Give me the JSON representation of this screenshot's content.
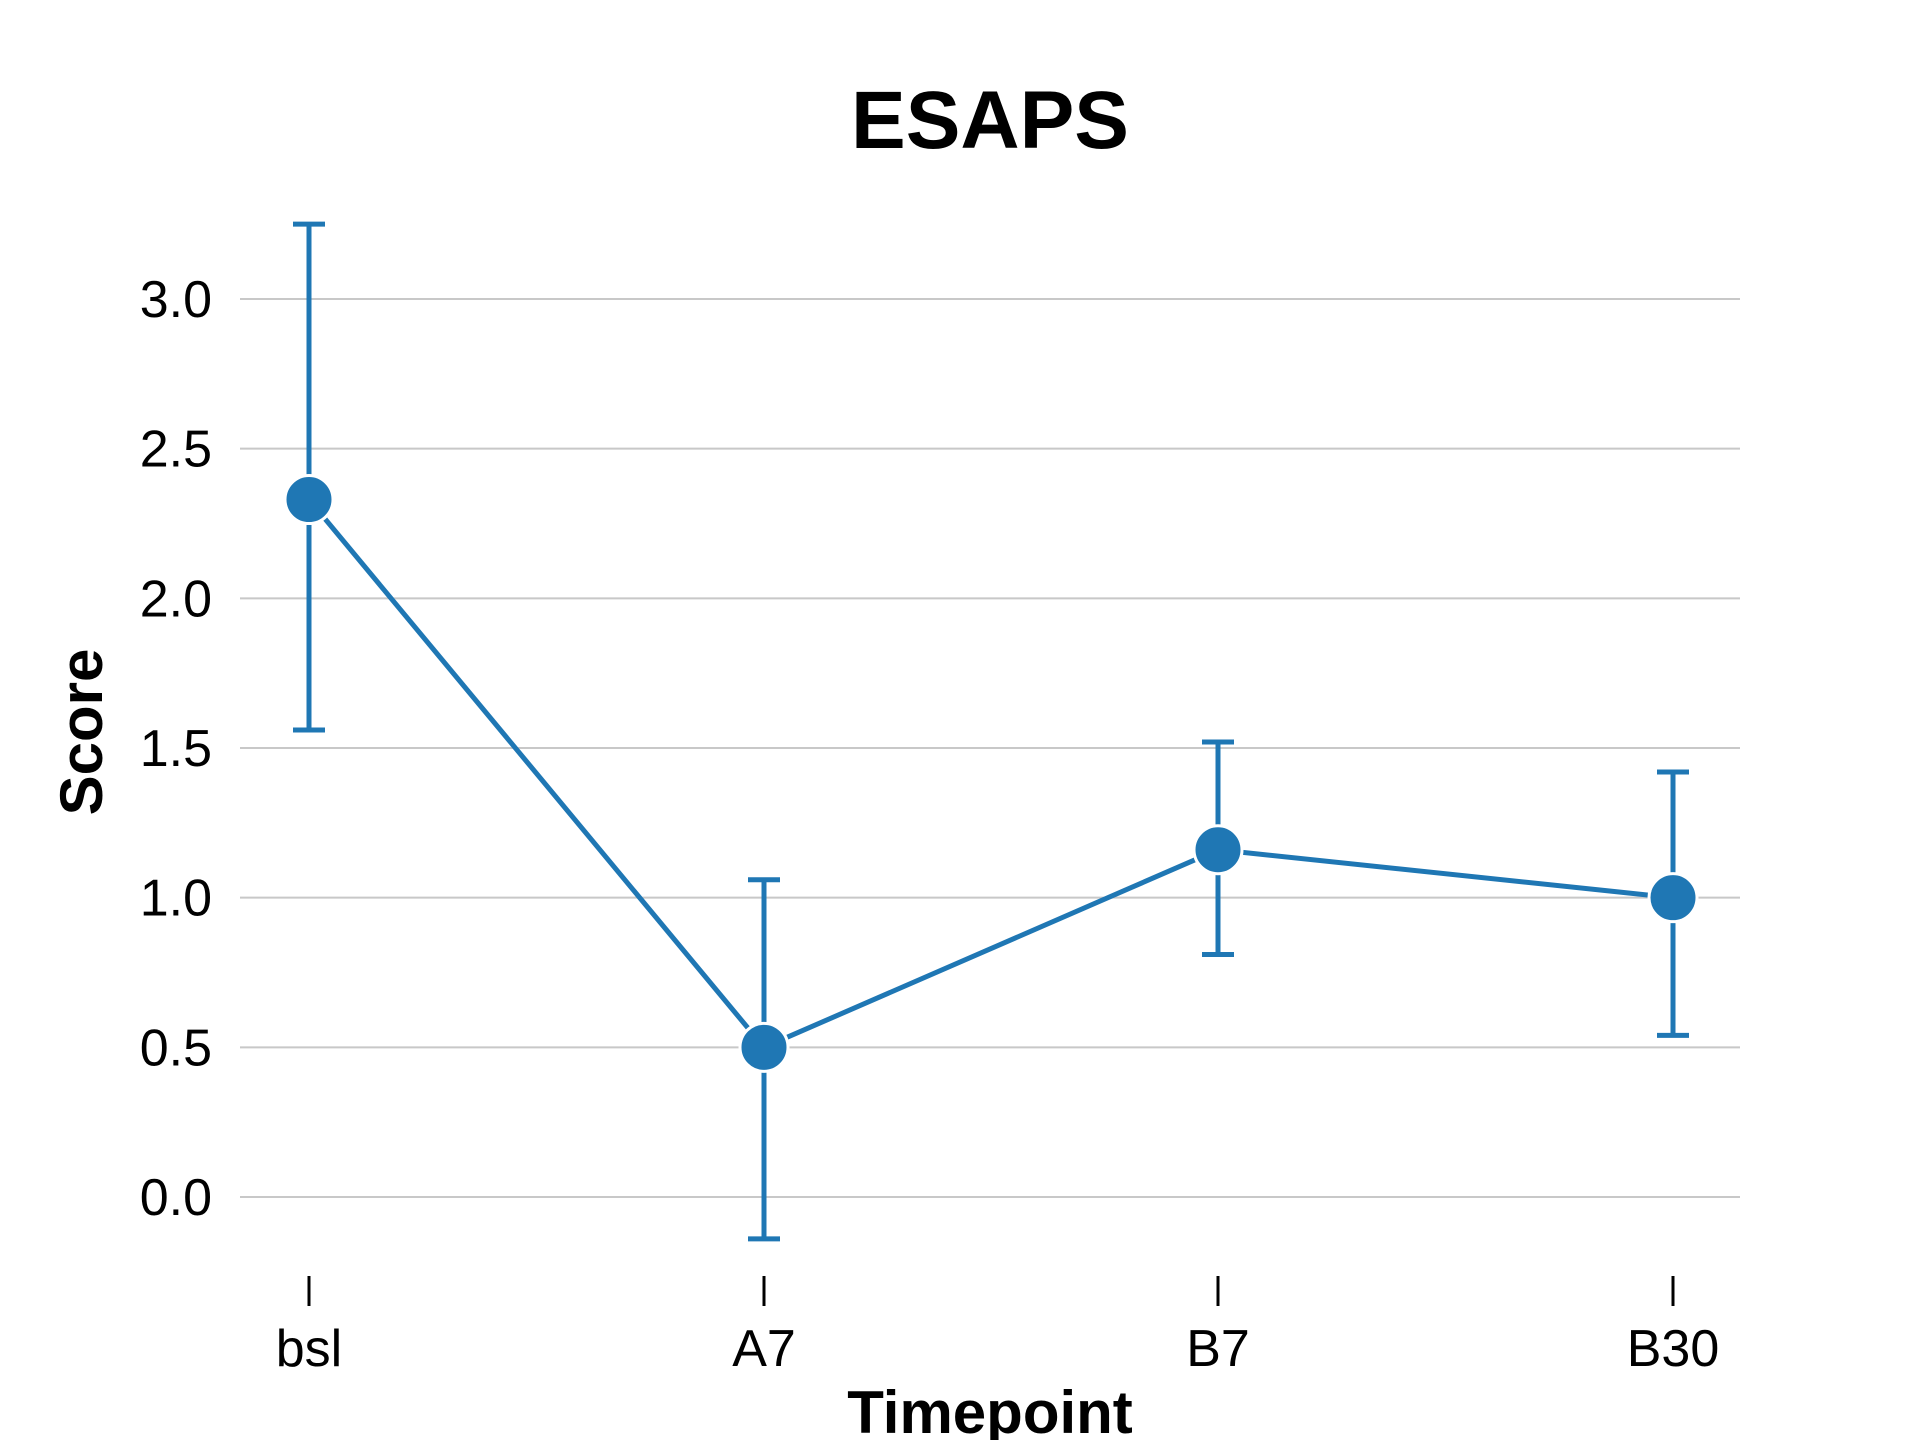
{
  "chart_data": {
    "type": "line",
    "title": "ESAPS",
    "xlabel": "Timepoint",
    "ylabel": "Score",
    "categories": [
      "bsl",
      "A7",
      "B7",
      "B30"
    ],
    "series": [
      {
        "values": [
          2.33,
          0.5,
          1.16,
          1.0
        ],
        "error_low": [
          1.56,
          -0.14,
          0.81,
          0.54
        ],
        "error_high": [
          3.25,
          1.06,
          1.52,
          1.42
        ],
        "color": "#1f77b4"
      }
    ],
    "ylim": [
      -0.2,
      3.35
    ],
    "yticks": [
      0.0,
      0.5,
      1.0,
      1.5,
      2.0,
      2.5,
      3.0
    ],
    "ytick_labels": [
      "0.0",
      "0.5",
      "1.0",
      "1.5",
      "2.0",
      "2.5",
      "3.0"
    ],
    "grid": "horizontal",
    "legend": "none"
  }
}
